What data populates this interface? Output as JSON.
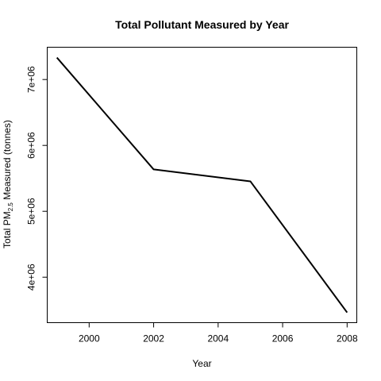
{
  "chart_data": {
    "type": "line",
    "title": "Total Pollutant Measured by Year",
    "xlabel": "Year",
    "ylabel": {
      "prefix": "Total PM",
      "subscript": "2.5",
      "suffix": " Measured (tonnes)"
    },
    "x": [
      1999,
      2002,
      2005,
      2008
    ],
    "series": [
      {
        "values": [
          7332967,
          5635780,
          5454703,
          3464206
        ]
      }
    ],
    "xlim": [
      1998.7,
      2008.3
    ],
    "ylim": [
      3310000,
      7490000
    ],
    "x_ticks": [
      2000,
      2002,
      2004,
      2006,
      2008
    ],
    "x_tick_labels": [
      "2000",
      "2002",
      "2004",
      "2006",
      "2008"
    ],
    "y_ticks": [
      4000000,
      5000000,
      6000000,
      7000000
    ],
    "y_tick_labels": [
      "4e+06",
      "5e+06",
      "6e+06",
      "7e+06"
    ],
    "grid": false,
    "line_color": "#000000"
  }
}
